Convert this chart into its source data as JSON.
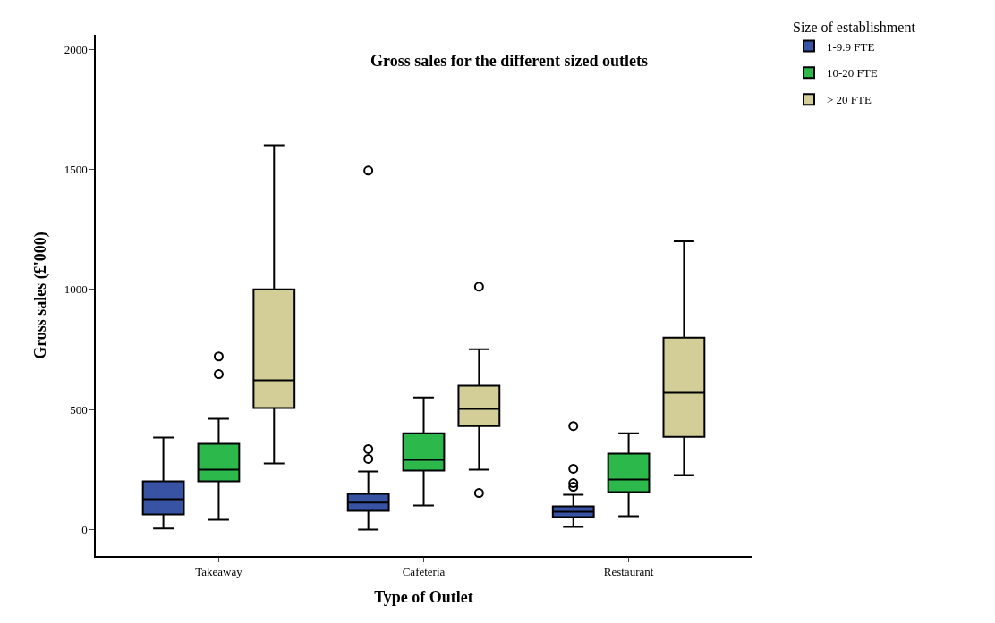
{
  "chart_data": {
    "type": "box",
    "title": "Gross sales for the different sized outlets",
    "xlabel": "Type of Outlet",
    "ylabel": "Gross sales (£'000)",
    "legend_title": "Size of establishment",
    "legend": "top right",
    "categories": [
      "Takeaway",
      "Cafeteria",
      "Restaurant"
    ],
    "ylim": [
      -110,
      2060
    ],
    "yticks": [
      0,
      500,
      1000,
      1500,
      2000
    ],
    "series": [
      {
        "name": "1-9.9 FTE",
        "color": "#3953a4",
        "boxes": [
          {
            "low": 4,
            "q1": 63,
            "median": 126,
            "q3": 201,
            "high": 383
          },
          {
            "low": 0,
            "q1": 78,
            "median": 112,
            "q3": 149,
            "high": 242,
            "outliers": [
              294,
              335,
              1495
            ]
          },
          {
            "low": 11,
            "q1": 52,
            "median": 74,
            "q3": 97,
            "high": 145,
            "outliers": [
              178,
              193,
              253,
              431
            ]
          }
        ]
      },
      {
        "name": "10-20 FTE",
        "color": "#2db84b",
        "boxes": [
          {
            "low": 41,
            "q1": 201,
            "median": 249,
            "q3": 357,
            "high": 461,
            "outliers": [
              647,
              721
            ]
          },
          {
            "low": 100,
            "q1": 245,
            "median": 290,
            "q3": 401,
            "high": 550
          },
          {
            "low": 56,
            "q1": 156,
            "median": 208,
            "q3": 316,
            "high": 401
          }
        ]
      },
      {
        "name": "> 20 FTE",
        "color": "#d3ce97",
        "boxes": [
          {
            "low": 275,
            "q1": 506,
            "median": 621,
            "q3": 1000,
            "high": 1600
          },
          {
            "low": 249,
            "q1": 431,
            "median": 502,
            "q3": 599,
            "high": 751,
            "outliers": [
              152,
              1011
            ]
          },
          {
            "low": 227,
            "q1": 386,
            "median": 569,
            "q3": 799,
            "high": 1200
          }
        ]
      }
    ]
  }
}
